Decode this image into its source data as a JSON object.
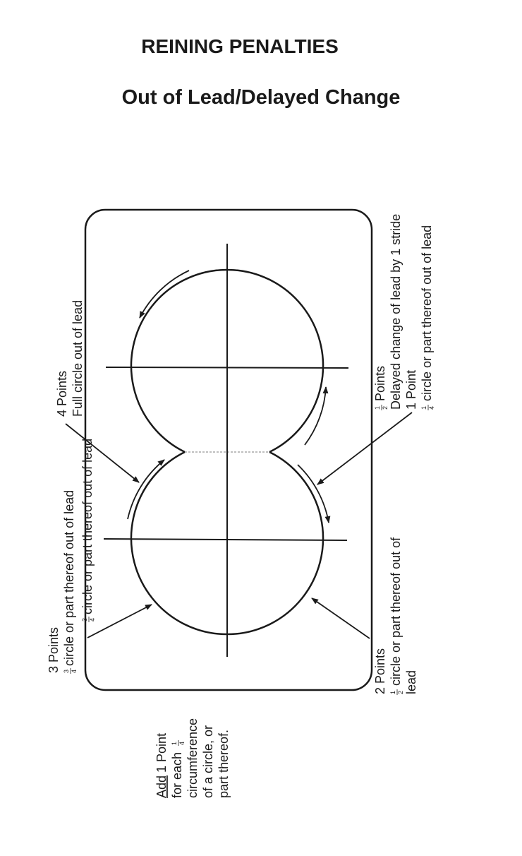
{
  "title": "REINING PENALTIES",
  "subtitle": "Out of Lead/Delayed Change",
  "labels": {
    "four_points": {
      "line1": "4 Points",
      "line2": "Full circle out of lead"
    },
    "three_quarter_top": {
      "text": "circle or part thereof out of lead",
      "frac_num": "3",
      "frac_den": "4"
    },
    "three_points": {
      "line1": "3 Points",
      "text": "circle or part thereof out of lead",
      "frac_num": "3",
      "frac_den": "4"
    },
    "half_point": {
      "points": "Points",
      "frac_num": "1",
      "frac_den": "2",
      "line2": "Delayed change of lead by 1 stride",
      "line3": "1 Point"
    },
    "quarter": {
      "text": "circle or part thereof out of lead",
      "frac_num": "1",
      "frac_den": "4"
    },
    "two_points": {
      "line1": "2 Points",
      "text": "circle or part thereof out of",
      "line3": "lead",
      "frac_num": "1",
      "frac_den": "2"
    },
    "add_note": {
      "add": "Add",
      "rest1": " 1 Point",
      "line2": "for each",
      "frac_num": "1",
      "frac_den": "4",
      "line3": "circumference",
      "line4": "of a circle, or",
      "line5": "part thereof."
    }
  }
}
